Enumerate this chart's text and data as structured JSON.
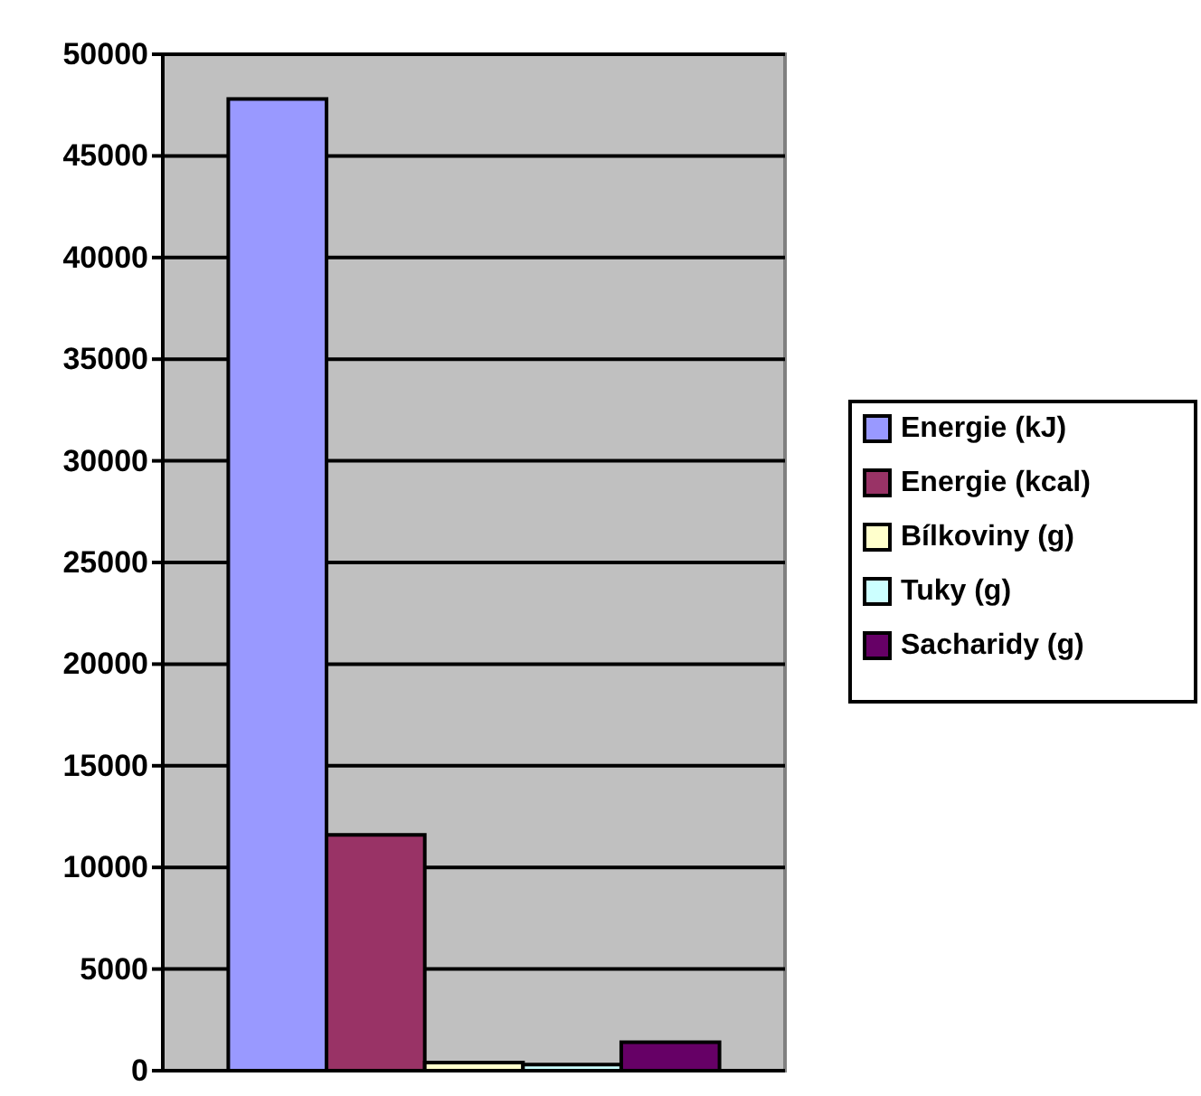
{
  "chart_data": {
    "type": "bar",
    "categories": [
      null
    ],
    "series": [
      {
        "name": "Energie (kJ)",
        "color": "#9999ff",
        "values": [
          47800
        ]
      },
      {
        "name": "Energie (kcal)",
        "color": "#993366",
        "values": [
          11600
        ]
      },
      {
        "name": "Bílkoviny (g)",
        "color": "#ffffcc",
        "values": [
          400
        ]
      },
      {
        "name": "Tuky (g)",
        "color": "#ccffff",
        "values": [
          300
        ]
      },
      {
        "name": "Sacharidy (g)",
        "color": "#660066",
        "values": [
          1400
        ]
      }
    ],
    "ylim": [
      0,
      50000
    ],
    "yticks": [
      0,
      5000,
      10000,
      15000,
      20000,
      25000,
      30000,
      35000,
      40000,
      45000,
      50000
    ],
    "grid": "y",
    "legend": "right"
  }
}
